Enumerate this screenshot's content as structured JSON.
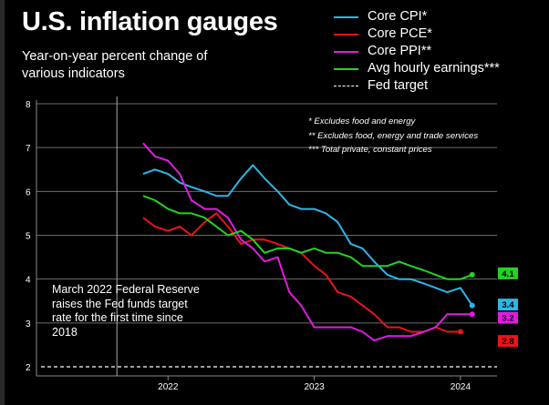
{
  "title": "U.S. inflation gauges",
  "subtitle": "Year-on-year percent change of various indicators",
  "legend": [
    {
      "label": "Core CPI*",
      "color": "#2bb7e8",
      "style": "solid"
    },
    {
      "label": "Core PCE*",
      "color": "#e8141b",
      "style": "solid"
    },
    {
      "label": "Core PPI**",
      "color": "#e01ce0",
      "style": "solid"
    },
    {
      "label": "Avg hourly earnings***",
      "color": "#22d422",
      "style": "solid"
    },
    {
      "label": "Fed target",
      "color": "#ffffff",
      "style": "dashed"
    }
  ],
  "notes": [
    "* Excludes food and energy",
    "** Excludes food, energy and trade services",
    "*** Total private, constant prices"
  ],
  "annotation": "March 2022 Federal Reserve raises the Fed funds target rate for the first time since 2018",
  "chart_data": {
    "type": "line",
    "xlim": [
      2021.1,
      2024.25
    ],
    "ylim": [
      2,
      8
    ],
    "y_ticks": [
      2,
      3,
      4,
      5,
      6,
      7,
      8
    ],
    "x_ticks": [
      {
        "value": 2022.0,
        "label": "2022"
      },
      {
        "value": 2023.0,
        "label": "2023"
      },
      {
        "value": 2024.0,
        "label": "2024"
      }
    ],
    "grid": true,
    "annotation_x": 2021.65,
    "series": [
      {
        "name": "Core CPI*",
        "color": "#2bb7e8",
        "end_label": "3.4",
        "x": [
          2021.83,
          2021.91,
          2022.0,
          2022.08,
          2022.16,
          2022.25,
          2022.33,
          2022.41,
          2022.5,
          2022.58,
          2022.66,
          2022.75,
          2022.83,
          2022.91,
          2023.0,
          2023.08,
          2023.16,
          2023.25,
          2023.33,
          2023.41,
          2023.5,
          2023.58,
          2023.66,
          2023.75,
          2023.83,
          2023.91,
          2024.0,
          2024.08
        ],
        "values": [
          6.4,
          6.5,
          6.4,
          6.2,
          6.1,
          6.0,
          5.9,
          5.9,
          6.3,
          6.6,
          6.3,
          6.0,
          5.7,
          5.6,
          5.6,
          5.5,
          5.3,
          4.8,
          4.7,
          4.4,
          4.1,
          4.0,
          4.0,
          3.9,
          3.8,
          3.7,
          3.8,
          3.4
        ]
      },
      {
        "name": "Core PCE*",
        "color": "#e8141b",
        "end_label": "2.8",
        "x": [
          2021.83,
          2021.91,
          2022.0,
          2022.08,
          2022.16,
          2022.25,
          2022.33,
          2022.41,
          2022.5,
          2022.58,
          2022.66,
          2022.75,
          2022.83,
          2022.91,
          2023.0,
          2023.08,
          2023.16,
          2023.25,
          2023.33,
          2023.41,
          2023.5,
          2023.58,
          2023.66,
          2023.75,
          2023.83,
          2023.91,
          2024.0
        ],
        "values": [
          5.4,
          5.2,
          5.1,
          5.2,
          5.0,
          5.3,
          5.5,
          5.2,
          4.8,
          4.9,
          4.9,
          4.8,
          4.7,
          4.6,
          4.3,
          4.1,
          3.7,
          3.6,
          3.4,
          3.2,
          2.9,
          2.9,
          2.8,
          2.8,
          2.9,
          2.8,
          2.8
        ]
      },
      {
        "name": "Core PPI**",
        "color": "#e01ce0",
        "end_label": "3.2",
        "x": [
          2021.83,
          2021.91,
          2022.0,
          2022.08,
          2022.16,
          2022.25,
          2022.33,
          2022.41,
          2022.5,
          2022.58,
          2022.66,
          2022.75,
          2022.83,
          2022.91,
          2023.0,
          2023.08,
          2023.16,
          2023.25,
          2023.33,
          2023.41,
          2023.5,
          2023.58,
          2023.66,
          2023.75,
          2023.83,
          2023.91,
          2024.0,
          2024.08
        ],
        "values": [
          7.1,
          6.8,
          6.7,
          6.4,
          5.8,
          5.6,
          5.6,
          5.4,
          4.9,
          4.7,
          4.4,
          4.5,
          3.7,
          3.4,
          2.9,
          2.9,
          2.9,
          2.9,
          2.8,
          2.6,
          2.7,
          2.7,
          2.7,
          2.8,
          2.9,
          3.2,
          3.2,
          3.2
        ]
      },
      {
        "name": "Avg hourly earnings***",
        "color": "#22d422",
        "end_label": "4.1",
        "x": [
          2021.83,
          2021.91,
          2022.0,
          2022.08,
          2022.16,
          2022.25,
          2022.33,
          2022.41,
          2022.5,
          2022.58,
          2022.66,
          2022.75,
          2022.83,
          2022.91,
          2023.0,
          2023.08,
          2023.16,
          2023.25,
          2023.33,
          2023.41,
          2023.5,
          2023.58,
          2023.66,
          2023.75,
          2023.83,
          2023.91,
          2024.0,
          2024.08
        ],
        "values": [
          5.9,
          5.8,
          5.6,
          5.5,
          5.5,
          5.4,
          5.2,
          5.0,
          5.1,
          4.9,
          4.6,
          4.7,
          4.7,
          4.6,
          4.7,
          4.6,
          4.6,
          4.5,
          4.3,
          4.3,
          4.3,
          4.4,
          4.3,
          4.2,
          4.1,
          4.0,
          4.0,
          4.1
        ]
      }
    ],
    "reference_line": {
      "name": "Fed target",
      "value": 2.0,
      "color": "#ffffff",
      "style": "dashed"
    }
  }
}
